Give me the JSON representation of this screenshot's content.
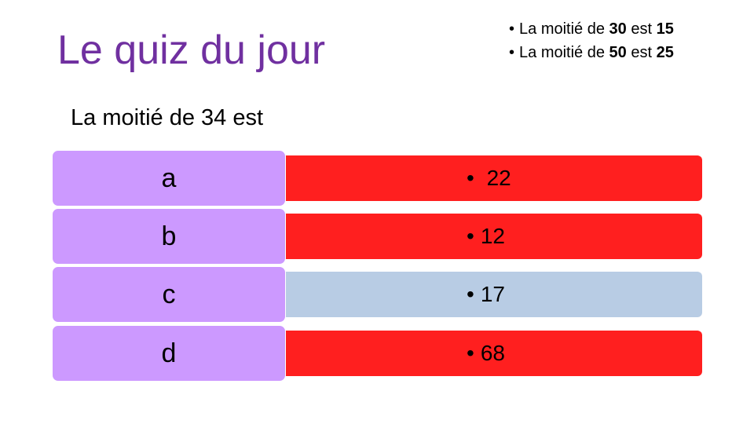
{
  "title": "Le quiz du jour",
  "hints": [
    {
      "bullet": "•",
      "pre": "La moitié de ",
      "a": "30",
      "mid": " est ",
      "b": "15"
    },
    {
      "bullet": "•",
      "pre": "La moitié de ",
      "a": "50",
      "mid": " est ",
      "b": "25"
    }
  ],
  "question": "La moitié de 34 est",
  "options": [
    {
      "letter": "a",
      "bullet": "•",
      "value": " 22",
      "color": "#ff1f1f"
    },
    {
      "letter": "b",
      "bullet": "•",
      "value": "12",
      "color": "#ff1f1f"
    },
    {
      "letter": "c",
      "bullet": "•",
      "value": "17",
      "color": "#b8cce4"
    },
    {
      "letter": "d",
      "bullet": "•",
      "value": "68",
      "color": "#ff1f1f"
    }
  ]
}
